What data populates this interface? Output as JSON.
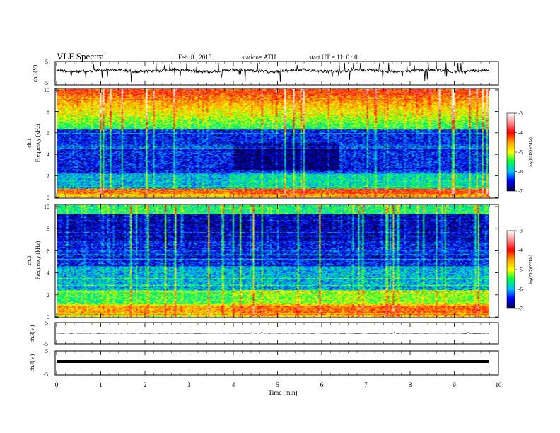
{
  "header": {
    "title": "VLF  Spectra",
    "date": "Feb. 8  , 2013",
    "station": "station= ATH",
    "start": "start  UT  =    11: 0  : 0"
  },
  "chart_data": [
    {
      "type": "line",
      "name": "ch1-waveform",
      "ylabel": "ch.1(V)",
      "ylim": [
        -5,
        5
      ],
      "yticks": [
        "5",
        "-5"
      ]
    },
    {
      "type": "heatmap",
      "name": "ch1-spectrogram",
      "ylabel_channel": "ch.1",
      "ylabel": "Frequency (kHz)",
      "ylim": [
        0,
        10
      ],
      "yticks": [
        "0",
        "2",
        "4",
        "6",
        "8",
        "10"
      ],
      "colorbar": {
        "label": "log(PSD)(V²/Hz)",
        "range": [
          -7,
          -3
        ],
        "ticks": [
          "-3",
          "-4",
          "-5",
          "-6",
          "-7"
        ]
      }
    },
    {
      "type": "heatmap",
      "name": "ch2-spectrogram",
      "ylabel_channel": "ch.2",
      "ylabel": "Frequency (kHz)",
      "ylim": [
        0,
        10
      ],
      "yticks": [
        "0",
        "2",
        "4",
        "6",
        "8",
        "10"
      ],
      "colorbar": {
        "label": "log(PSD)(V²/Hz)",
        "range": [
          -7,
          -3
        ],
        "ticks": [
          "-3",
          "-4",
          "-5",
          "-6",
          "-7"
        ]
      }
    },
    {
      "type": "line",
      "name": "ch3-waveform",
      "ylabel": "ch.3(V)",
      "ylim": [
        -5,
        5
      ],
      "yticks": [
        "5",
        "-5"
      ]
    },
    {
      "type": "line",
      "name": "ch4-waveform",
      "ylabel": "ch.4(V)",
      "ylim": [
        -5,
        5
      ],
      "yticks": [
        "5",
        "-5"
      ]
    }
  ],
  "xaxis": {
    "label": "Time  (min)",
    "range": [
      0,
      10
    ],
    "ticks": [
      "0",
      "1",
      "2",
      "3",
      "4",
      "5",
      "6",
      "7",
      "8",
      "9",
      "10"
    ],
    "data_end": 9.8
  }
}
